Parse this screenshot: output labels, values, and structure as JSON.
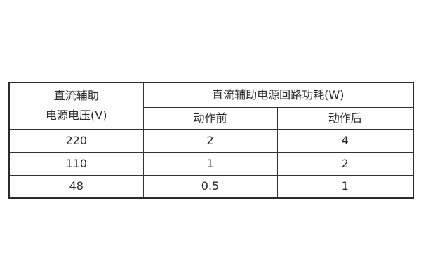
{
  "page": {
    "background": "#ffffff"
  },
  "table": {
    "title_semantic": "dc-auxiliary-power-consumption-table",
    "colors": {
      "outer_border": "#2b2b2b",
      "grid_line": "#333333",
      "text": "#2a2a2a",
      "cell_background": "#ffffff"
    },
    "header": {
      "voltage_label_line1": "直流辅助",
      "voltage_label_line2": "电源电压(V)",
      "power_group_label": "直流辅助电源回路功耗(W)",
      "before_label": "动作前",
      "after_label": "动作后"
    },
    "rows": [
      {
        "voltage": "220",
        "before": "2",
        "after": "4"
      },
      {
        "voltage": "110",
        "before": "1",
        "after": "2"
      },
      {
        "voltage": "48",
        "before": "0.5",
        "after": "1"
      }
    ]
  }
}
